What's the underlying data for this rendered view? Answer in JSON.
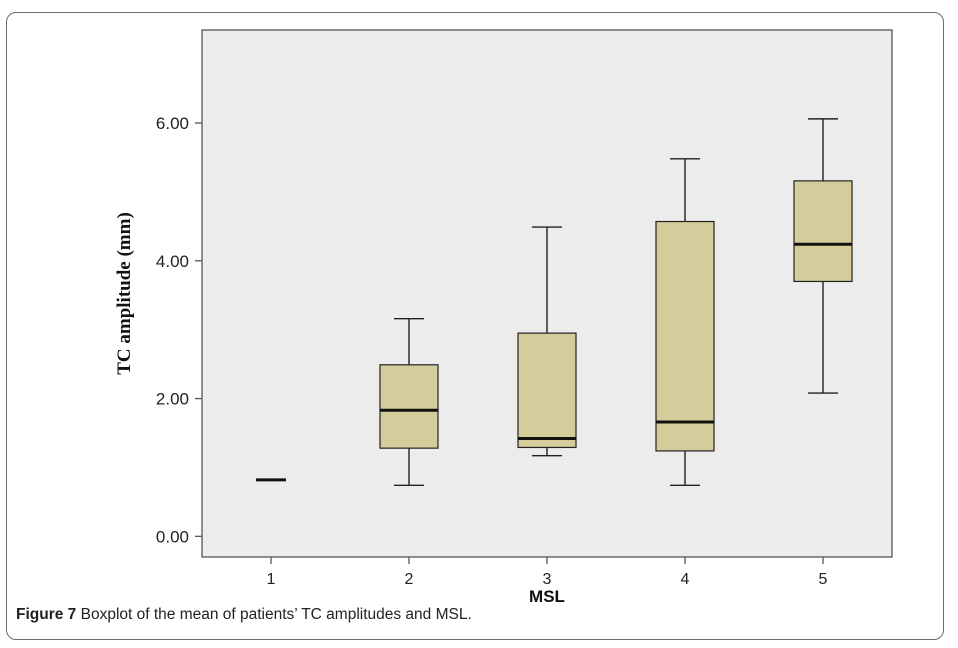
{
  "figure": {
    "label": "Figure 7",
    "caption": "Boxplot of the mean of patients’ TC amplitudes and MSL."
  },
  "colors": {
    "plot_background": "#ececec",
    "box_fill": "#d4cc9a",
    "line": "#222222",
    "axis": "#555555"
  },
  "chart_data": {
    "type": "boxplot",
    "xlabel": "MSL",
    "ylabel": "TC amplitude (mm)",
    "ylim": [
      -0.3,
      7.35
    ],
    "yticks": [
      0,
      2,
      4,
      6
    ],
    "ytick_labels": [
      "0.00",
      "2.00",
      "4.00",
      "6.00"
    ],
    "categories": [
      "1",
      "2",
      "3",
      "4",
      "5"
    ],
    "boxes": [
      {
        "category": "1",
        "whisker_low": 0.82,
        "q1": 0.82,
        "median": 0.82,
        "q3": 0.82,
        "whisker_high": 0.82
      },
      {
        "category": "2",
        "whisker_low": 0.74,
        "q1": 1.28,
        "median": 1.83,
        "q3": 2.49,
        "whisker_high": 3.16
      },
      {
        "category": "3",
        "whisker_low": 1.17,
        "q1": 1.29,
        "median": 1.42,
        "q3": 2.95,
        "whisker_high": 4.49
      },
      {
        "category": "4",
        "whisker_low": 0.74,
        "q1": 1.24,
        "median": 1.66,
        "q3": 4.57,
        "whisker_high": 5.48
      },
      {
        "category": "5",
        "whisker_low": 2.08,
        "q1": 3.7,
        "median": 4.24,
        "q3": 5.16,
        "whisker_high": 6.06
      }
    ],
    "grid": false,
    "legend": "none"
  }
}
